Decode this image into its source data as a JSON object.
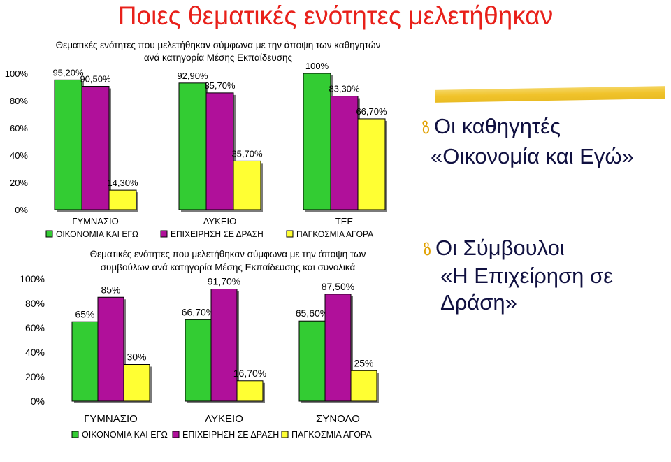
{
  "slide": {
    "title": "Ποιες θεματικές ενότητες μελετήθηκαν",
    "bullet1_title": "Οι καθηγητές",
    "bullet1_sub": "«Οικονομία και Εγώ»",
    "bullet2_title": "Οι Σύμβουλοι",
    "bullet2_sub": "«Η Επιχείρηση σε Δράση»",
    "bullet_icon": "ზ"
  },
  "colors": {
    "title": "#e8201a",
    "series1": "#33cc33",
    "series2": "#b0109a",
    "series3": "#ffff33",
    "highlight": "#f0c020"
  },
  "chart_data": [
    {
      "type": "bar",
      "title": "Θεματικές ενότητες που μελετήθηκαν σύμφωνα με την άποψη των καθηγητών ανά κατηγορία Μέσης Εκπαίδευσης",
      "categories": [
        "ΓΥΜΝΑΣΙΟ",
        "ΛΥΚΕΙΟ",
        "ΤΕΕ"
      ],
      "yticks": [
        "0%",
        "20%",
        "40%",
        "60%",
        "80%",
        "100%"
      ],
      "ylim": [
        0,
        100
      ],
      "legend_position": "bottom",
      "series": [
        {
          "name": "ΟΙΚΟΝΟΜΙΑ ΚΑΙ ΕΓΩ",
          "values": [
            95.2,
            92.9,
            100
          ],
          "labels": [
            "95,20%",
            "92,90%",
            "100%"
          ]
        },
        {
          "name": "ΕΠΙΧΕΙΡΗΣΗ ΣΕ ΔΡΑΣΗ",
          "values": [
            90.5,
            85.7,
            83.3
          ],
          "labels": [
            "90,50%",
            "85,70%",
            "83,30%"
          ]
        },
        {
          "name": "ΠΑΓΚΟΣΜΙΑ ΑΓΟΡΑ",
          "values": [
            14.3,
            35.7,
            66.7
          ],
          "labels": [
            "14,30%",
            "35,70%",
            "66,70%"
          ]
        }
      ]
    },
    {
      "type": "bar",
      "title": "Θεματικές ενότητες που μελετήθηκαν σύμφωνα με την άποψη των συμβούλων ανά κατηγορία Μέσης Εκπαίδευσης και συνολικά",
      "categories": [
        "ΓΥΜΝΑΣΙΟ",
        "ΛΥΚΕΙΟ",
        "ΣΥΝΟΛΟ"
      ],
      "yticks": [
        "0%",
        "20%",
        "40%",
        "60%",
        "80%",
        "100%"
      ],
      "ylim": [
        0,
        100
      ],
      "legend_position": "bottom",
      "series": [
        {
          "name": "ΟΙΚΟΝΟΜΙΑ ΚΑΙ ΕΓΩ",
          "values": [
            65,
            66.7,
            65.6
          ],
          "labels": [
            "65%",
            "66,70%",
            "65,60%"
          ]
        },
        {
          "name": "ΕΠΙΧΕΙΡΗΣΗ ΣΕ ΔΡΑΣΗ",
          "values": [
            85,
            91.7,
            87.5
          ],
          "labels": [
            "85%",
            "91,70%",
            "87,50%"
          ]
        },
        {
          "name": "ΠΑΓΚΟΣΜΙΑ ΑΓΟΡΑ",
          "values": [
            30,
            16.7,
            25
          ],
          "labels": [
            "30%",
            "16,70%",
            "25%"
          ]
        }
      ]
    }
  ]
}
